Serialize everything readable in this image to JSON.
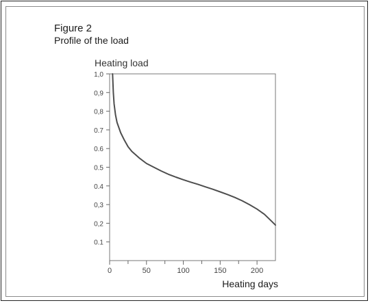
{
  "figure": {
    "title": "Figure 2",
    "subtitle": "Profile of the load"
  },
  "chart_data": {
    "type": "line",
    "ylabel": "Heating load",
    "xlabel": "Heating days",
    "xlim": [
      0,
      225
    ],
    "ylim": [
      0,
      1.0
    ],
    "x_ticks": [
      0,
      50,
      100,
      150,
      200
    ],
    "x_minor_ticks": [
      25,
      75,
      125,
      175
    ],
    "y_ticks": [
      0.1,
      0.2,
      0.3,
      0.4,
      0.5,
      0.6,
      0.7,
      0.8,
      0.9,
      1.0
    ],
    "x_tick_labels": [
      "0",
      "50",
      "100",
      "150",
      "200"
    ],
    "y_tick_labels": [
      "0.1",
      "0,2",
      "0,3",
      "0.4",
      "0.5",
      "0.6",
      "0.7",
      "0,8",
      "0,9",
      "1,0"
    ],
    "grid": false,
    "line_color": "#4d4d4d",
    "series": [
      {
        "x": [
          4,
          5,
          6,
          8,
          10,
          15,
          20,
          25,
          30,
          40,
          50,
          60,
          70,
          80,
          90,
          100,
          110,
          120,
          130,
          140,
          150,
          160,
          170,
          180,
          190,
          200,
          210,
          220,
          225
        ],
        "y": [
          1.0,
          0.9,
          0.84,
          0.78,
          0.74,
          0.685,
          0.645,
          0.61,
          0.585,
          0.55,
          0.52,
          0.5,
          0.48,
          0.462,
          0.447,
          0.433,
          0.42,
          0.408,
          0.395,
          0.382,
          0.368,
          0.354,
          0.338,
          0.32,
          0.299,
          0.276,
          0.248,
          0.21,
          0.19
        ]
      }
    ]
  }
}
